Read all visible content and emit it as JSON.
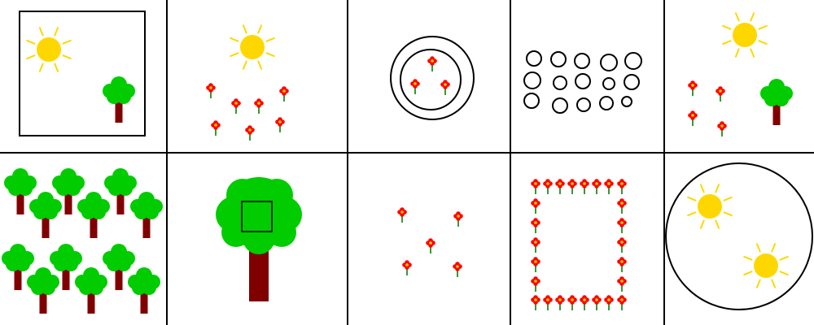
{
  "colors": {
    "background": "#ffffff",
    "grid_line": "#000000",
    "sun": "#ffd700",
    "sun_ray": "#ffd700",
    "foliage": "#00cc00",
    "trunk": "#800000",
    "flower_petal": "#ff0000",
    "flower_center": "#ffd700",
    "stem": "#008000",
    "outline": "#000000"
  },
  "grid": {
    "rows": 2,
    "columns": 5
  },
  "panels": [
    {
      "id": "panel-1",
      "content": [
        "frame-square",
        "sun",
        "tree"
      ]
    },
    {
      "id": "panel-2",
      "content": [
        "sun",
        "flower",
        "flower",
        "flower",
        "flower",
        "flower",
        "flower",
        "flower"
      ]
    },
    {
      "id": "panel-3",
      "content": [
        "outer-circle",
        "inner-circle",
        "flower",
        "flower",
        "flower"
      ]
    },
    {
      "id": "panel-4",
      "content": [
        "ring",
        "ring",
        "ring",
        "ring",
        "ring",
        "ring",
        "ring",
        "ring",
        "ring",
        "ring",
        "ring",
        "ring",
        "ring",
        "ring",
        "ring"
      ]
    },
    {
      "id": "panel-5",
      "content": [
        "sun",
        "tree",
        "flower",
        "flower",
        "flower",
        "flower"
      ]
    },
    {
      "id": "panel-6",
      "content": [
        "tree",
        "tree",
        "tree",
        "tree",
        "tree",
        "tree",
        "tree",
        "tree",
        "tree",
        "tree",
        "tree",
        "tree"
      ]
    },
    {
      "id": "panel-7",
      "content": [
        "big-tree",
        "square-on-tree"
      ]
    },
    {
      "id": "panel-8",
      "content": [
        "flower",
        "flower",
        "flower",
        "flower",
        "flower"
      ]
    },
    {
      "id": "panel-9",
      "content": [
        "flower-border-rectangle"
      ]
    },
    {
      "id": "panel-10",
      "content": [
        "big-circle",
        "sun",
        "sun"
      ]
    }
  ]
}
